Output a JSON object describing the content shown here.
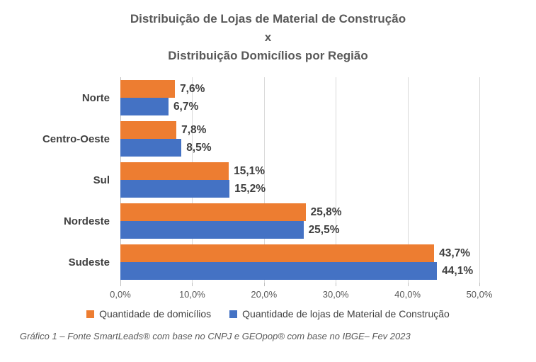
{
  "title": {
    "line1": "Distribuição de Lojas de Material de Construção",
    "line2": "x",
    "line3": "Distribuição Domicílios por Região"
  },
  "chart_data": {
    "type": "bar",
    "orientation": "horizontal",
    "categories": [
      "Norte",
      "Centro-Oeste",
      "Sul",
      "Nordeste",
      "Sudeste"
    ],
    "series": [
      {
        "name": "Quantidade de domicílios",
        "color": "#ED7D31",
        "values": [
          7.6,
          7.8,
          15.1,
          25.8,
          43.7
        ],
        "labels": [
          "7,6%",
          "7,8%",
          "15,1%",
          "25,8%",
          "43,7%"
        ]
      },
      {
        "name": "Quantidade de lojas de Material de Construção",
        "color": "#4472C4",
        "values": [
          6.7,
          8.5,
          15.2,
          25.5,
          44.1
        ],
        "labels": [
          "6,7%",
          "8,5%",
          "15,2%",
          "25,5%",
          "44,1%"
        ]
      }
    ],
    "xlim": [
      0,
      50
    ],
    "x_ticks": [
      0,
      10,
      20,
      30,
      40,
      50
    ],
    "x_tick_labels": [
      "0,0%",
      "10,0%",
      "20,0%",
      "30,0%",
      "40,0%",
      "50,0%"
    ],
    "grid": true,
    "legend_position": "bottom",
    "value_labels": true
  },
  "caption": "Gráfico 1 – Fonte SmartLeads® com base no CNPJ e GEOpop® com base no IBGE– Fev 2023",
  "colors": {
    "title": "#595959",
    "category_label": "#404040",
    "value_label": "#3F3F3F",
    "gridline": "#D9D9D9",
    "axis_line": "#BFBFBF",
    "tick_label": "#595959",
    "caption": "#595959",
    "background": "#FFFFFF"
  }
}
